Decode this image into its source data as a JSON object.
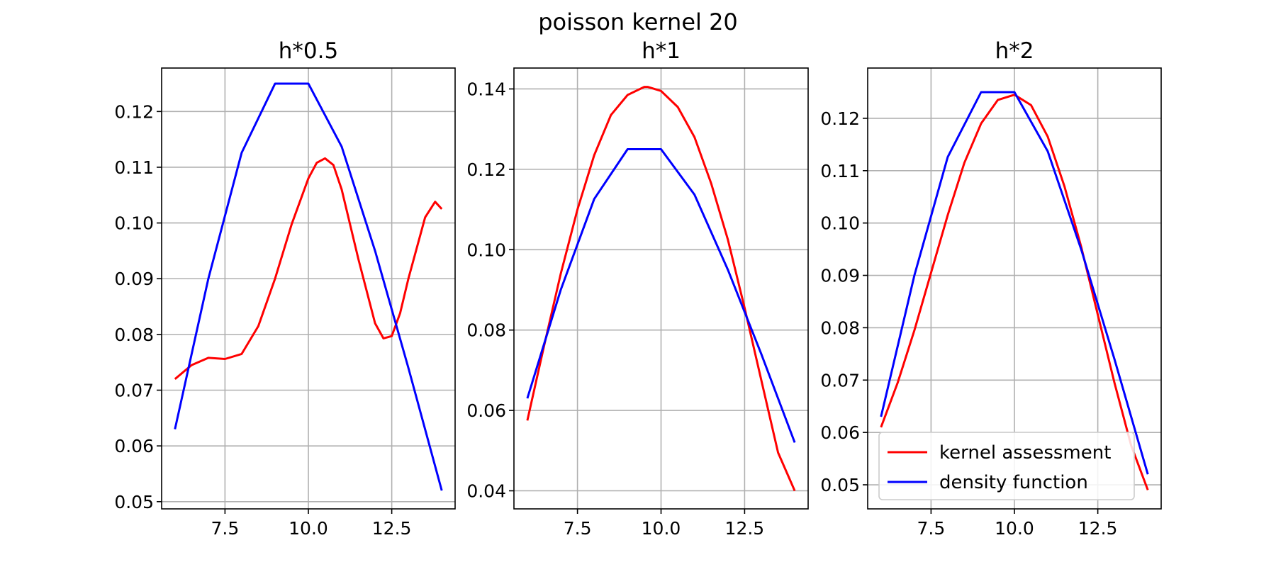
{
  "figure": {
    "title": "poisson kernel 20"
  },
  "chart_data": [
    {
      "type": "line",
      "title": "h*0.5",
      "xlabel": "",
      "ylabel": "",
      "xlim": [
        5.6,
        14.4
      ],
      "ylim": [
        0.0487,
        0.1278
      ],
      "xticks": [
        7.5,
        10.0,
        12.5
      ],
      "xtick_labels": [
        "7.5",
        "10.0",
        "12.5"
      ],
      "yticks": [
        0.05,
        0.06,
        0.07,
        0.08,
        0.09,
        0.1,
        0.11,
        0.12
      ],
      "ytick_labels": [
        "0.05",
        "0.06",
        "0.07",
        "0.08",
        "0.09",
        "0.10",
        "0.11",
        "0.12"
      ],
      "grid": true,
      "series": [
        {
          "name": "kernel assessment",
          "color": "#ff0000",
          "x": [
            6.0,
            6.5,
            7.0,
            7.5,
            8.0,
            8.5,
            9.0,
            9.5,
            10.0,
            10.25,
            10.5,
            10.75,
            11.0,
            11.5,
            12.0,
            12.25,
            12.5,
            12.75,
            13.0,
            13.5,
            13.8,
            14.0
          ],
          "y": [
            0.072,
            0.0745,
            0.0758,
            0.0756,
            0.0765,
            0.0815,
            0.09,
            0.0998,
            0.108,
            0.1108,
            0.1116,
            0.1104,
            0.106,
            0.0935,
            0.082,
            0.0793,
            0.0797,
            0.0838,
            0.09,
            0.101,
            0.1038,
            0.1025
          ]
        },
        {
          "name": "density function",
          "color": "#0000ff",
          "x": [
            6,
            7,
            8,
            9,
            10,
            11,
            12,
            13,
            14
          ],
          "y": [
            0.063,
            0.09,
            0.1126,
            0.125,
            0.125,
            0.1137,
            0.095,
            0.074,
            0.052
          ]
        }
      ]
    },
    {
      "type": "line",
      "title": "h*1",
      "xlabel": "",
      "ylabel": "",
      "xlim": [
        5.6,
        14.4
      ],
      "ylim": [
        0.0355,
        0.1452
      ],
      "xticks": [
        7.5,
        10.0,
        12.5
      ],
      "xtick_labels": [
        "7.5",
        "10.0",
        "12.5"
      ],
      "yticks": [
        0.04,
        0.06,
        0.08,
        0.1,
        0.12,
        0.14
      ],
      "ytick_labels": [
        "0.04",
        "0.06",
        "0.08",
        "0.10",
        "0.12",
        "0.14"
      ],
      "grid": true,
      "series": [
        {
          "name": "kernel assessment",
          "color": "#ff0000",
          "x": [
            6.0,
            6.5,
            7.0,
            7.5,
            8.0,
            8.5,
            9.0,
            9.5,
            9.6,
            10.0,
            10.5,
            11.0,
            11.5,
            12.0,
            12.5,
            13.0,
            13.5,
            14.0
          ],
          "y": [
            0.0575,
            0.076,
            0.094,
            0.11,
            0.1235,
            0.1335,
            0.1385,
            0.1405,
            0.1405,
            0.1395,
            0.1355,
            0.128,
            0.1165,
            0.1025,
            0.0855,
            0.0675,
            0.0495,
            0.04
          ]
        },
        {
          "name": "density function",
          "color": "#0000ff",
          "x": [
            6,
            7,
            8,
            9,
            10,
            11,
            12,
            13,
            14
          ],
          "y": [
            0.063,
            0.09,
            0.1126,
            0.125,
            0.125,
            0.1137,
            0.095,
            0.074,
            0.052
          ]
        }
      ]
    },
    {
      "type": "line",
      "title": "h*2",
      "xlabel": "",
      "ylabel": "",
      "xlim": [
        5.6,
        14.4
      ],
      "ylim": [
        0.0454,
        0.1296
      ],
      "xticks": [
        7.5,
        10.0,
        12.5
      ],
      "xtick_labels": [
        "7.5",
        "10.0",
        "12.5"
      ],
      "yticks": [
        0.05,
        0.06,
        0.07,
        0.08,
        0.09,
        0.1,
        0.11,
        0.12
      ],
      "ytick_labels": [
        "0.05",
        "0.06",
        "0.07",
        "0.08",
        "0.09",
        "0.10",
        "0.11",
        "0.12"
      ],
      "grid": true,
      "legend": {
        "placement": "lower center",
        "entries": [
          "kernel assessment",
          "density function"
        ]
      },
      "series": [
        {
          "name": "kernel assessment",
          "color": "#ff0000",
          "x": [
            6.0,
            6.5,
            7.0,
            7.5,
            8.0,
            8.5,
            9.0,
            9.5,
            10.0,
            10.5,
            11.0,
            11.5,
            12.0,
            12.5,
            13.0,
            13.5,
            14.0
          ],
          "y": [
            0.061,
            0.0695,
            0.0795,
            0.0905,
            0.1015,
            0.1115,
            0.119,
            0.1235,
            0.1245,
            0.1225,
            0.1165,
            0.107,
            0.0955,
            0.0825,
            0.0695,
            0.0575,
            0.049
          ]
        },
        {
          "name": "density function",
          "color": "#0000ff",
          "x": [
            6,
            7,
            8,
            9,
            10,
            11,
            12,
            13,
            14
          ],
          "y": [
            0.063,
            0.09,
            0.1126,
            0.125,
            0.125,
            0.1137,
            0.095,
            0.074,
            0.052
          ]
        }
      ]
    }
  ]
}
